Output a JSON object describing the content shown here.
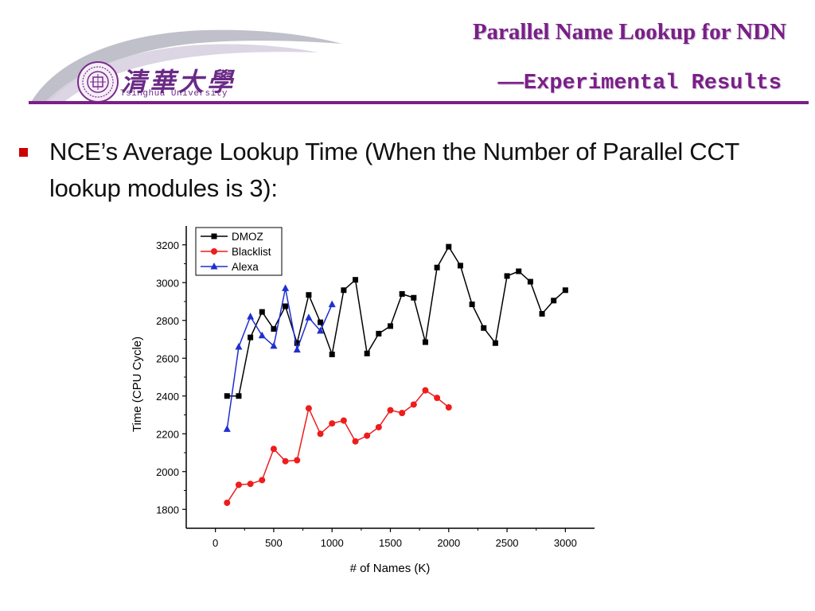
{
  "header": {
    "title": "Parallel Name Lookup for NDN",
    "subtitle": "——Experimental Results",
    "logo_cn": "清華大學",
    "logo_en": "Tsinghua University"
  },
  "body": {
    "bullet_text": "NCE’s Average Lookup Time (When the Number of Parallel CCT lookup modules is 3):"
  },
  "colors": {
    "accent": "#7a1f86",
    "bullet": "#cc0000",
    "dmoz": "#000000",
    "blacklist": "#ee1c1c",
    "alexa": "#1f2fd0"
  },
  "chart_data": {
    "type": "line",
    "xlabel": "# of Names (K)",
    "ylabel": "Time (CPU Cycle)",
    "xlim": [
      -250,
      3250
    ],
    "ylim": [
      1700,
      3300
    ],
    "xticks": [
      0,
      500,
      1000,
      1500,
      2000,
      2500,
      3000
    ],
    "yticks": [
      1800,
      2000,
      2200,
      2400,
      2600,
      2800,
      3000,
      3200
    ],
    "legend_position": "top-left",
    "grid": false,
    "series": [
      {
        "name": "DMOZ",
        "marker": "square",
        "color": "#000000",
        "points": [
          [
            100,
            2400
          ],
          [
            200,
            2400
          ],
          [
            300,
            2710
          ],
          [
            400,
            2845
          ],
          [
            500,
            2755
          ],
          [
            600,
            2875
          ],
          [
            700,
            2680
          ],
          [
            800,
            2935
          ],
          [
            900,
            2790
          ],
          [
            1000,
            2620
          ],
          [
            1100,
            2960
          ],
          [
            1200,
            3015
          ],
          [
            1300,
            2625
          ],
          [
            1400,
            2730
          ],
          [
            1500,
            2770
          ],
          [
            1600,
            2940
          ],
          [
            1700,
            2920
          ],
          [
            1800,
            2685
          ],
          [
            1900,
            3080
          ],
          [
            2000,
            3190
          ],
          [
            2100,
            3090
          ],
          [
            2200,
            2885
          ],
          [
            2300,
            2760
          ],
          [
            2400,
            2680
          ],
          [
            2500,
            3035
          ],
          [
            2600,
            3060
          ],
          [
            2700,
            3005
          ],
          [
            2800,
            2835
          ],
          [
            2900,
            2905
          ],
          [
            3000,
            2960
          ]
        ]
      },
      {
        "name": "Blacklist",
        "marker": "circle",
        "color": "#ee1c1c",
        "points": [
          [
            100,
            1835
          ],
          [
            200,
            1930
          ],
          [
            300,
            1935
          ],
          [
            400,
            1955
          ],
          [
            500,
            2120
          ],
          [
            600,
            2055
          ],
          [
            700,
            2060
          ],
          [
            800,
            2335
          ],
          [
            900,
            2200
          ],
          [
            1000,
            2255
          ],
          [
            1100,
            2270
          ],
          [
            1200,
            2160
          ],
          [
            1300,
            2190
          ],
          [
            1400,
            2235
          ],
          [
            1500,
            2325
          ],
          [
            1600,
            2310
          ],
          [
            1700,
            2355
          ],
          [
            1800,
            2430
          ],
          [
            1900,
            2390
          ],
          [
            2000,
            2340
          ]
        ]
      },
      {
        "name": "Alexa",
        "marker": "triangle",
        "color": "#1f2fd0",
        "points": [
          [
            100,
            2225
          ],
          [
            200,
            2660
          ],
          [
            300,
            2820
          ],
          [
            400,
            2720
          ],
          [
            500,
            2665
          ],
          [
            600,
            2970
          ],
          [
            700,
            2645
          ],
          [
            800,
            2815
          ],
          [
            900,
            2745
          ],
          [
            1000,
            2885
          ]
        ]
      }
    ]
  }
}
